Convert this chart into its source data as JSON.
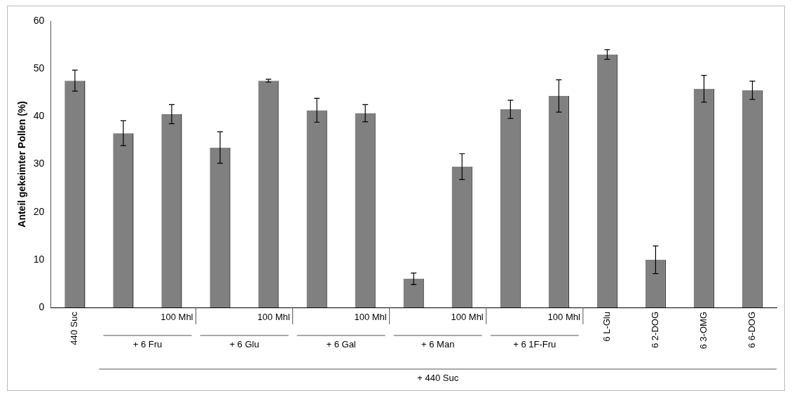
{
  "chart_data": {
    "type": "bar",
    "ylabel": "Anteil gekeimter Pollen (%)",
    "categories": [
      "440 Suc",
      null,
      "100 Mhl",
      null,
      "100 Mhl",
      null,
      "100 Mhl",
      null,
      "100 Mhl",
      null,
      "100 Mhl",
      "6 L-Glu",
      "6 2-DOG",
      "6 3-OMG",
      "6 6-DOG"
    ],
    "values": [
      47.5,
      36.5,
      40.5,
      33.5,
      47.5,
      41.3,
      40.7,
      6,
      29.5,
      41.5,
      44.3,
      53,
      10,
      45.8,
      45.5
    ],
    "errors": [
      2.2,
      2.6,
      2,
      3.3,
      0.3,
      2.5,
      1.8,
      1.2,
      2.7,
      1.9,
      3.4,
      1,
      2.9,
      2.8,
      1.9
    ],
    "color": "#808080",
    "ylim": [
      0,
      60
    ],
    "yticks": [
      0,
      10,
      20,
      30,
      40,
      50,
      60
    ],
    "grid": false,
    "annotations": [
      "+ 6 Fru",
      "+ 6 Glu",
      "+ 6 Gal",
      "+ 6 Man",
      "+ 6 1F-Fru",
      "+ 440 Suc"
    ]
  }
}
